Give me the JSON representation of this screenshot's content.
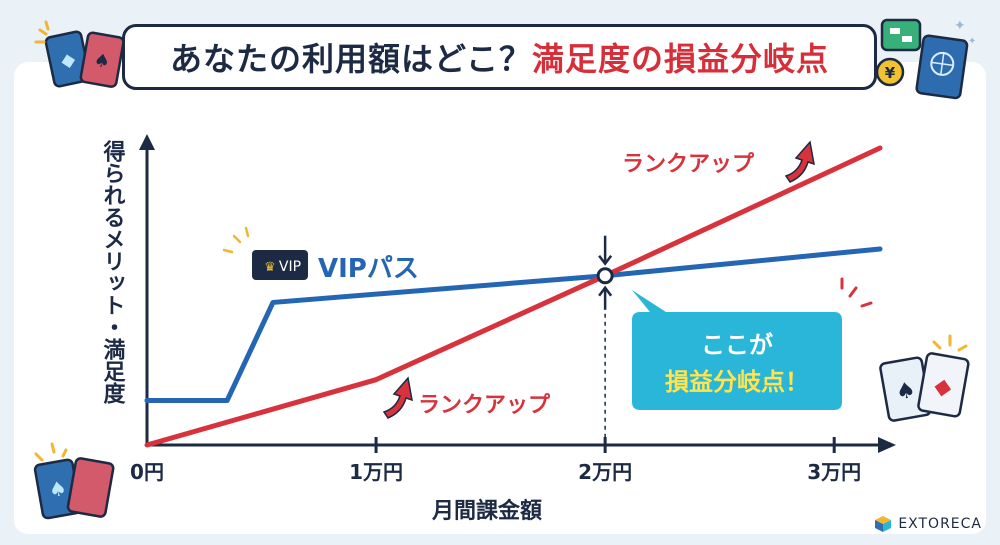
{
  "title": {
    "part1": "あなたの利用額はどこ？",
    "part2": "満足度の損益分岐点"
  },
  "colors": {
    "vip_line": "#2466b3",
    "rank_line": "#d8323c",
    "navy": "#1c2a44",
    "callout_bg": "#29b6d9",
    "callout_highlight": "#ffe44d"
  },
  "callout": {
    "line1": "ここが",
    "line2": "損益分岐点！"
  },
  "labels": {
    "vip_badge": "VIP",
    "vip": "VIPパス",
    "rank_up_top": "ランクアップ",
    "rank_up_bottom": "ランクアップ"
  },
  "brand": "EXTORECA",
  "chart_data": {
    "type": "line",
    "xlabel": "月間課金額",
    "ylabel": "得られるメリット・満足度",
    "x_ticks": [
      "0円",
      "1万円",
      "2万円",
      "3万円"
    ],
    "x_tick_values": [
      0,
      10000,
      20000,
      30000
    ],
    "xlim": [
      0,
      32000
    ],
    "ylim": [
      0,
      100
    ],
    "grid": false,
    "series": [
      {
        "name": "VIPパス",
        "x": [
          0,
          3500,
          5500,
          20000,
          32000
        ],
        "y": [
          15,
          15,
          48,
          57,
          66
        ]
      },
      {
        "name": "ランクアップ",
        "x": [
          0,
          10000,
          20000,
          32000
        ],
        "y": [
          0,
          22,
          57,
          100
        ]
      }
    ],
    "breakeven": {
      "x": 20000,
      "y": 57
    }
  }
}
